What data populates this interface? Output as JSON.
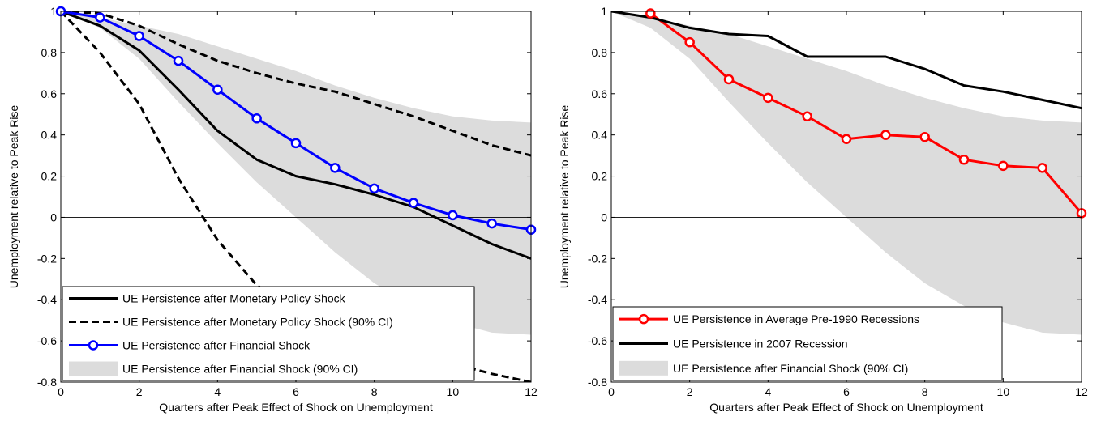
{
  "chart_data": [
    {
      "type": "line",
      "xlabel": "Quarters after Peak Effect of Shock on Unemployment",
      "ylabel": "Unemployment relative to Peak Rise",
      "xlim": [
        0,
        12
      ],
      "ylim": [
        -0.8,
        1
      ],
      "xticks": [
        "0",
        "2",
        "4",
        "6",
        "8",
        "10",
        "12"
      ],
      "yticks": [
        "-0.8",
        "-0.6",
        "-0.4",
        "-0.2",
        "0",
        "0.2",
        "0.4",
        "0.6",
        "0.8",
        "1"
      ],
      "legend_position": "bottom-left",
      "x": [
        0,
        1,
        2,
        3,
        4,
        5,
        6,
        7,
        8,
        9,
        10,
        11,
        12
      ],
      "series": [
        {
          "name": "UE Persistence after Monetary Policy Shock",
          "style": "solid",
          "color": "#000000",
          "values": [
            1.0,
            0.93,
            0.81,
            0.62,
            0.42,
            0.28,
            0.2,
            0.16,
            0.11,
            0.05,
            -0.04,
            -0.13,
            -0.2
          ]
        },
        {
          "name": "UE Persistence after Monetary Policy Shock (90% CI)",
          "style": "dashed",
          "color": "#000000",
          "band": true,
          "upper": [
            1.0,
            0.99,
            0.93,
            0.84,
            0.76,
            0.7,
            0.65,
            0.61,
            0.55,
            0.49,
            0.42,
            0.35,
            0.3
          ],
          "lower": [
            1.0,
            0.8,
            0.55,
            0.19,
            -0.11,
            -0.33,
            -0.45,
            -0.53,
            -0.6,
            -0.66,
            -0.71,
            -0.76,
            -0.8
          ]
        },
        {
          "name": "UE Persistence after Financial Shock",
          "style": "solid-markers",
          "color": "#0000ff",
          "values": [
            1.0,
            0.97,
            0.88,
            0.76,
            0.62,
            0.48,
            0.36,
            0.24,
            0.14,
            0.07,
            0.01,
            -0.03,
            -0.06
          ]
        },
        {
          "name": "UE Persistence after Financial Shock (90% CI)",
          "style": "shaded",
          "color": "#dcdcdc",
          "upper": [
            1.0,
            0.97,
            0.93,
            0.89,
            0.83,
            0.77,
            0.71,
            0.64,
            0.58,
            0.53,
            0.49,
            0.47,
            0.46
          ],
          "lower": [
            1.0,
            0.92,
            0.77,
            0.56,
            0.36,
            0.17,
            0.0,
            -0.17,
            -0.32,
            -0.43,
            -0.51,
            -0.56,
            -0.57
          ]
        }
      ]
    },
    {
      "type": "line",
      "xlabel": "Quarters after Peak Effect of Shock on Unemployment",
      "ylabel": "Unemployment relative to Peak Rise",
      "xlim": [
        0,
        12
      ],
      "ylim": [
        -0.8,
        1
      ],
      "xticks": [
        "0",
        "2",
        "4",
        "6",
        "8",
        "10",
        "12"
      ],
      "yticks": [
        "-0.8",
        "-0.6",
        "-0.4",
        "-0.2",
        "0",
        "0.2",
        "0.4",
        "0.6",
        "0.8",
        "1"
      ],
      "legend_position": "bottom-left",
      "x": [
        0,
        1,
        2,
        3,
        4,
        5,
        6,
        7,
        8,
        9,
        10,
        11,
        12
      ],
      "series": [
        {
          "name": "UE Persistence in Average Pre-1990 Recessions",
          "style": "solid-markers",
          "color": "#ff0000",
          "values": [
            null,
            0.99,
            0.85,
            0.67,
            0.58,
            0.49,
            0.38,
            0.4,
            0.39,
            0.28,
            0.25,
            0.24,
            0.02
          ]
        },
        {
          "name": "UE Persistence in 2007 Recession",
          "style": "solid",
          "color": "#000000",
          "values": [
            1.0,
            0.97,
            0.92,
            0.89,
            0.88,
            0.78,
            0.78,
            0.78,
            0.72,
            0.64,
            0.61,
            0.57,
            0.53
          ]
        },
        {
          "name": "UE Persistence after Financial Shock (90% CI)",
          "style": "shaded",
          "color": "#dcdcdc",
          "upper": [
            1.0,
            0.97,
            0.93,
            0.89,
            0.83,
            0.77,
            0.71,
            0.64,
            0.58,
            0.53,
            0.49,
            0.47,
            0.46
          ],
          "lower": [
            1.0,
            0.92,
            0.77,
            0.56,
            0.36,
            0.17,
            0.0,
            -0.17,
            -0.32,
            -0.43,
            -0.51,
            -0.56,
            -0.57
          ]
        }
      ]
    }
  ]
}
